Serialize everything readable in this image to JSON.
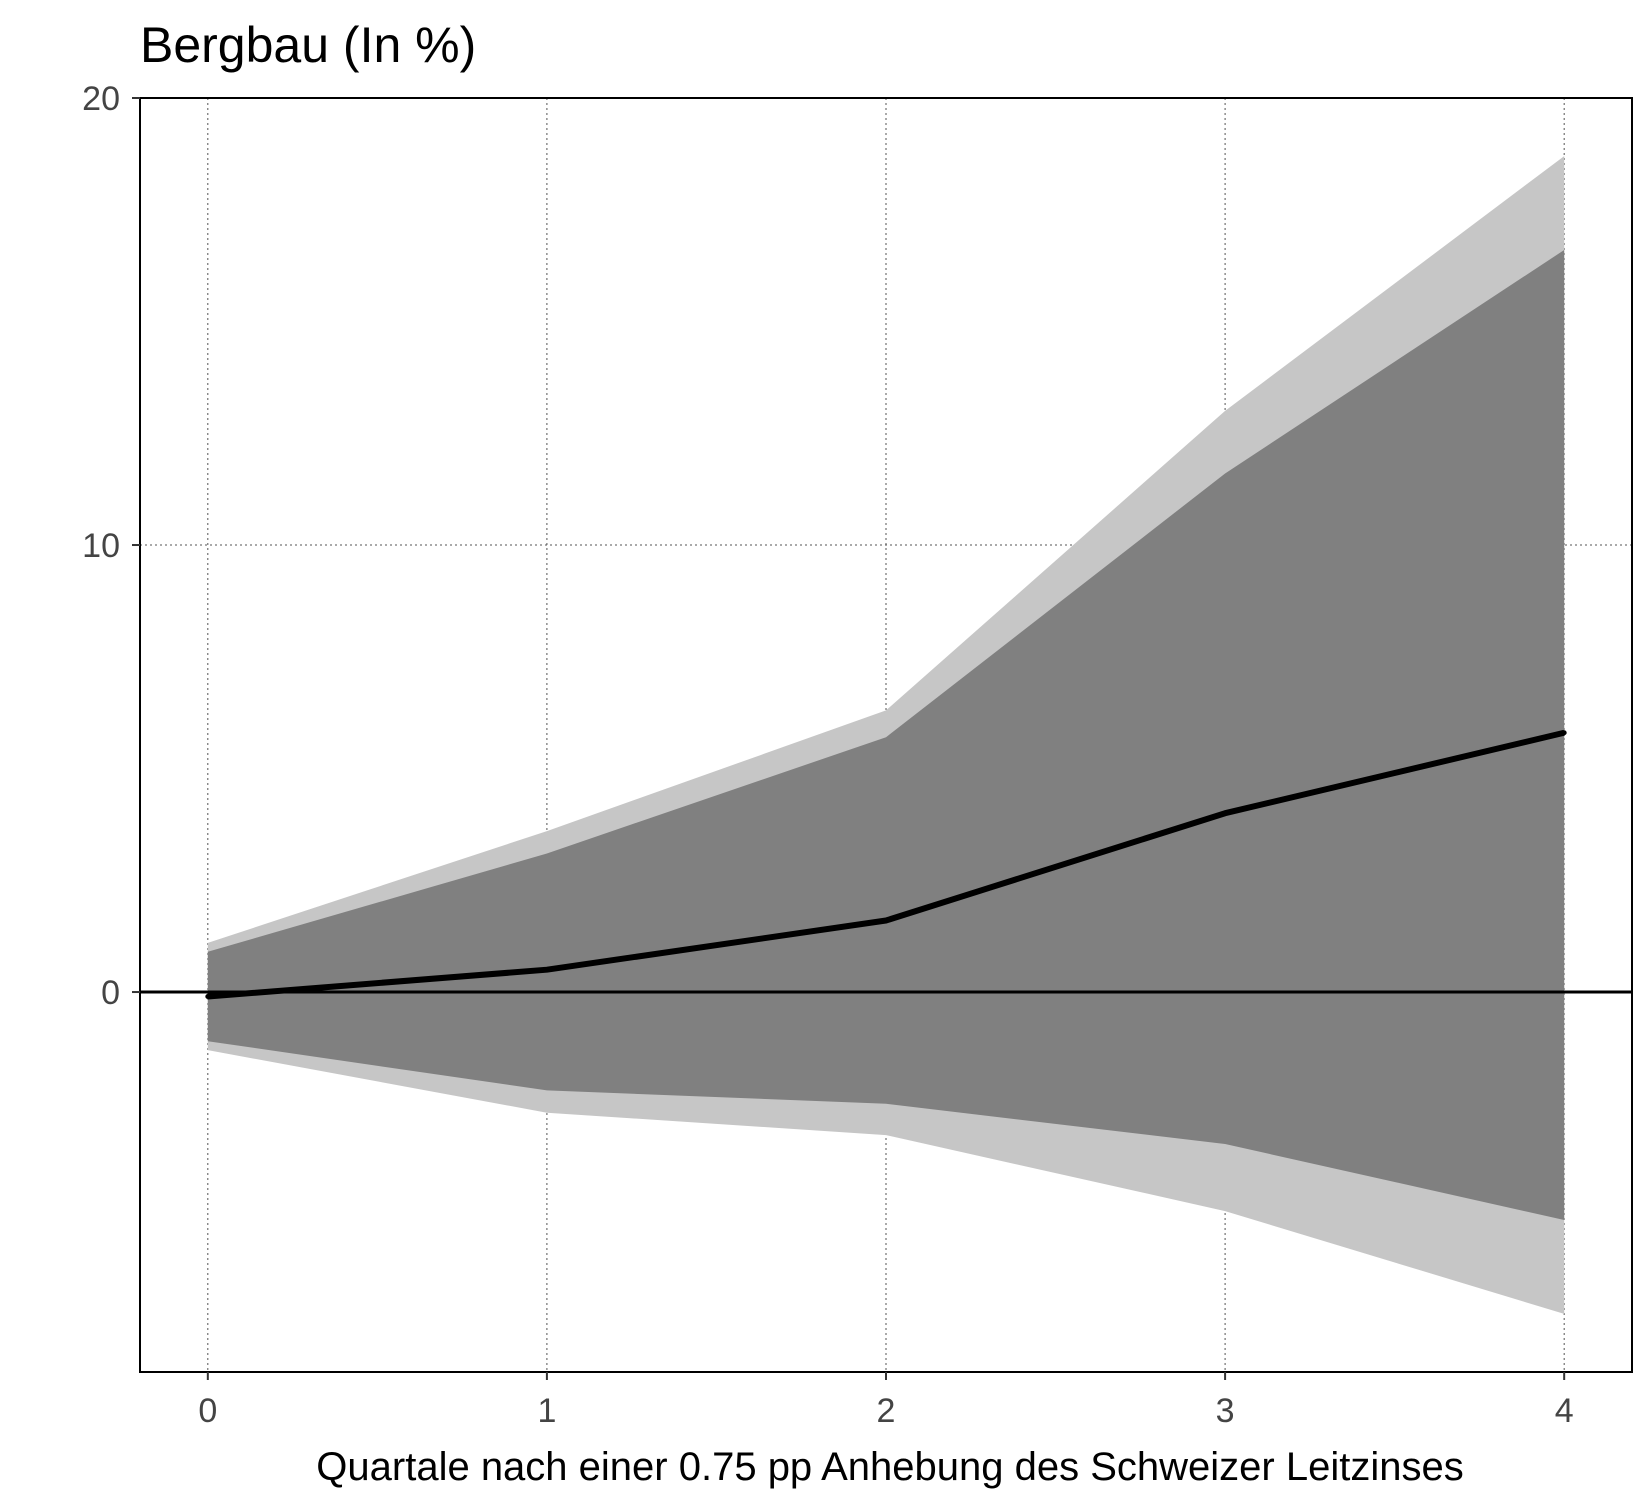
{
  "chart_data": {
    "type": "area",
    "title": "Bergbau (In %)",
    "xlabel": "Quartale nach einer 0.75 pp Anhebung des Schweizer Leitzinses",
    "ylabel": "",
    "x": [
      0,
      1,
      2,
      3,
      4
    ],
    "xticks": [
      "0",
      "1",
      "2",
      "3",
      "4"
    ],
    "yticks": [
      "0",
      "10",
      "20"
    ],
    "xlim": [
      -0.2,
      4.2
    ],
    "ylim": [
      -8.5,
      20
    ],
    "grid": true,
    "reference_line": 0,
    "series": [
      {
        "role": "band-outer",
        "lower": [
          -1.3,
          -2.7,
          -3.2,
          -4.9,
          -7.2
        ],
        "upper": [
          1.1,
          3.6,
          6.3,
          13.0,
          18.7
        ],
        "color": "#c6c6c6"
      },
      {
        "role": "band-inner",
        "lower": [
          -1.1,
          -2.2,
          -2.5,
          -3.4,
          -5.1
        ],
        "upper": [
          0.9,
          3.1,
          5.7,
          11.6,
          16.6
        ],
        "color": "#808080"
      },
      {
        "role": "median",
        "values": [
          -0.1,
          0.5,
          1.6,
          4.0,
          5.8
        ],
        "color": "#000000"
      }
    ]
  }
}
